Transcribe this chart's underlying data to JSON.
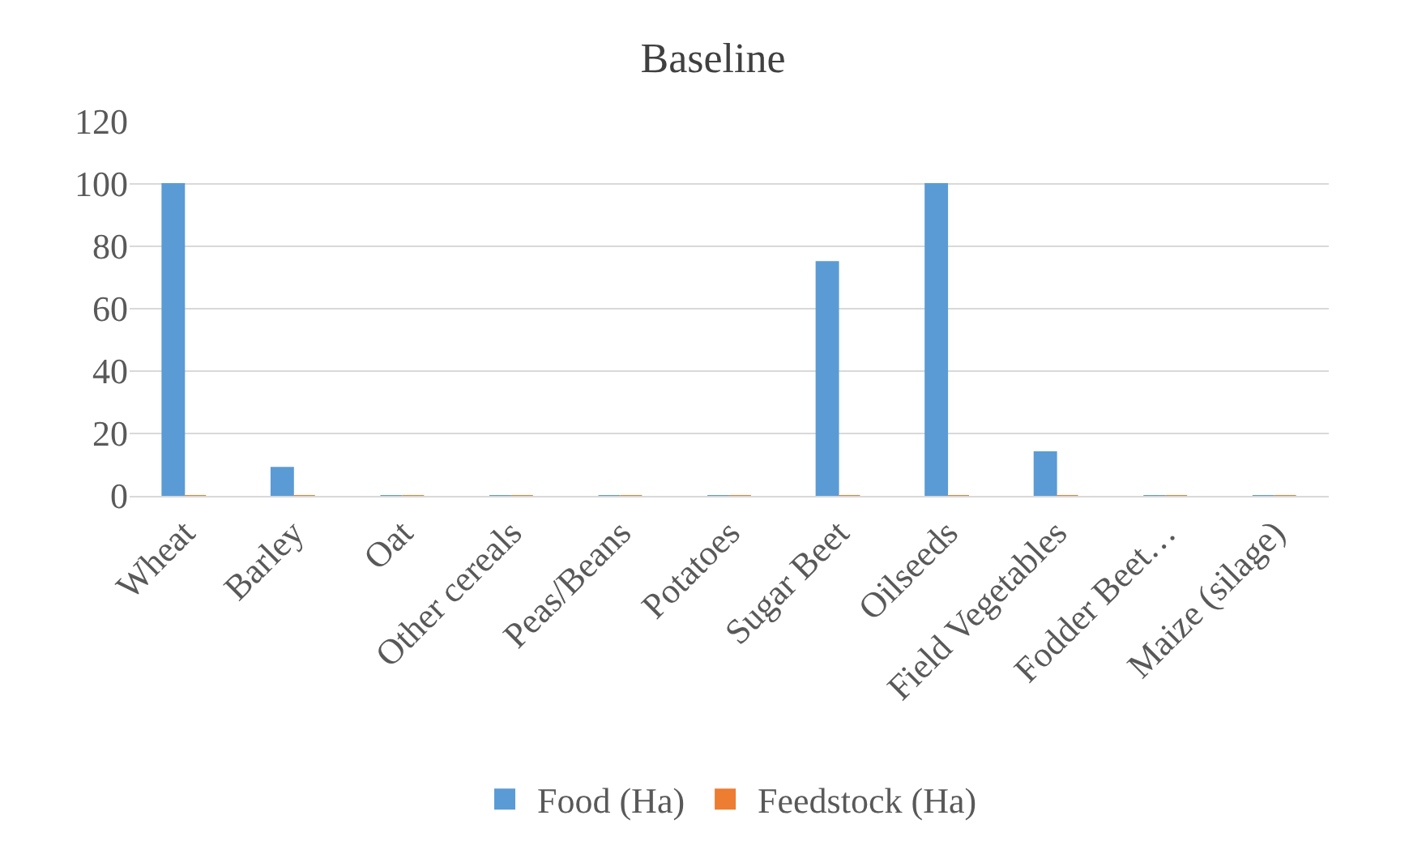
{
  "chart_data": {
    "type": "bar",
    "title": "Baseline",
    "categories": [
      "Wheat",
      "Barley",
      "Oat",
      "Other cereals",
      "Peas/Beans",
      "Potatoes",
      "Sugar Beet",
      "Oilseeds",
      "Field Vegetables",
      "Fodder Beet…",
      "Maize (silage)"
    ],
    "series": [
      {
        "name": "Food (Ha)",
        "color": "#5b9bd5",
        "values": [
          100,
          9,
          0,
          0,
          0,
          0,
          75,
          100,
          14,
          0,
          0
        ]
      },
      {
        "name": "Feedstock (Ha)",
        "color": "#ed7d31",
        "values": [
          0,
          0,
          0,
          0,
          0,
          0,
          0,
          0,
          0,
          0,
          0
        ]
      }
    ],
    "ylim": [
      0,
      120
    ],
    "yticks": [
      0,
      20,
      40,
      60,
      80,
      100,
      120
    ],
    "grid": "y",
    "legend": "bottom"
  }
}
